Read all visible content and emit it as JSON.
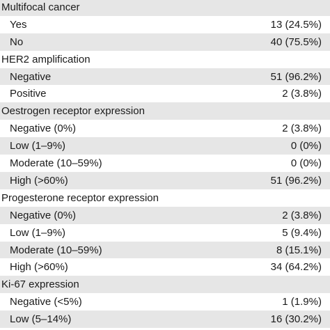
{
  "rows": [
    {
      "type": "header",
      "label": "Multifocal cancer",
      "value": ""
    },
    {
      "type": "item",
      "label": "Yes",
      "value": "13 (24.5%)"
    },
    {
      "type": "item",
      "label": "No",
      "value": "40 (75.5%)"
    },
    {
      "type": "header",
      "label": "HER2 amplification",
      "value": ""
    },
    {
      "type": "item",
      "label": "Negative",
      "value": "51 (96.2%)"
    },
    {
      "type": "item",
      "label": "Positive",
      "value": "2 (3.8%)"
    },
    {
      "type": "header",
      "label": "Oestrogen receptor expression",
      "value": ""
    },
    {
      "type": "item",
      "label": "Negative (0%)",
      "value": "2 (3.8%)"
    },
    {
      "type": "item",
      "label": "Low (1–9%)",
      "value": "0 (0%)"
    },
    {
      "type": "item",
      "label": "Moderate (10–59%)",
      "value": "0 (0%)"
    },
    {
      "type": "item",
      "label": "High (>60%)",
      "value": "51 (96.2%)"
    },
    {
      "type": "header",
      "label": "Progesterone receptor expression",
      "value": ""
    },
    {
      "type": "item",
      "label": "Negative (0%)",
      "value": "2 (3.8%)"
    },
    {
      "type": "item",
      "label": "Low (1–9%)",
      "value": "5 (9.4%)"
    },
    {
      "type": "item",
      "label": "Moderate (10–59%)",
      "value": "8 (15.1%)"
    },
    {
      "type": "item",
      "label": "High (>60%)",
      "value": "34 (64.2%)"
    },
    {
      "type": "header",
      "label": "Ki-67 expression",
      "value": ""
    },
    {
      "type": "item",
      "label": "Negative (<5%)",
      "value": "1 (1.9%)"
    },
    {
      "type": "item",
      "label": "Low (5–14%)",
      "value": "16 (30.2%)"
    }
  ]
}
